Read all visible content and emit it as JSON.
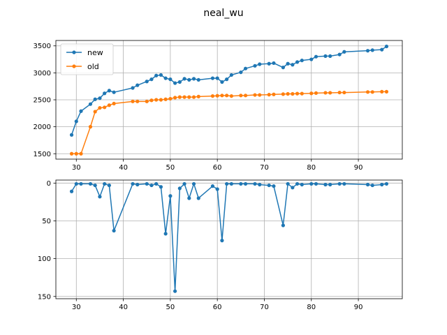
{
  "chart_data": [
    {
      "type": "line",
      "title": "neal_wu",
      "xlabel": "",
      "ylabel": "",
      "xlim": [
        25.65,
        99.35
      ],
      "ylim": [
        1400,
        3600
      ],
      "xticks": [
        30,
        40,
        50,
        60,
        70,
        80,
        90
      ],
      "yticks": [
        1500,
        2000,
        2500,
        3000,
        3500
      ],
      "grid": true,
      "legend": "top-left",
      "series": [
        {
          "name": "new",
          "color": "#1f77b4",
          "x": [
            29,
            30,
            31,
            33,
            34,
            35,
            36,
            37,
            38,
            42,
            43,
            45,
            46,
            47,
            48,
            49,
            50,
            51,
            52,
            53,
            54,
            55,
            56,
            59,
            60,
            61,
            62,
            63,
            65,
            66,
            68,
            69,
            71,
            72,
            74,
            75,
            76,
            77,
            78,
            80,
            81,
            83,
            84,
            86,
            87,
            92,
            93,
            95,
            96
          ],
          "y": [
            1850,
            2100,
            2290,
            2420,
            2510,
            2530,
            2620,
            2670,
            2640,
            2720,
            2770,
            2840,
            2880,
            2950,
            2960,
            2900,
            2880,
            2810,
            2830,
            2890,
            2870,
            2890,
            2870,
            2900,
            2900,
            2830,
            2880,
            2960,
            3010,
            3080,
            3130,
            3160,
            3170,
            3180,
            3100,
            3170,
            3150,
            3200,
            3230,
            3250,
            3300,
            3310,
            3310,
            3340,
            3390,
            3410,
            3420,
            3430,
            3490
          ]
        },
        {
          "name": "old",
          "color": "#ff7f0e",
          "x": [
            29,
            30,
            31,
            33,
            34,
            35,
            36,
            37,
            38,
            42,
            43,
            45,
            46,
            47,
            48,
            49,
            50,
            51,
            52,
            53,
            54,
            55,
            56,
            59,
            60,
            61,
            62,
            63,
            65,
            66,
            68,
            69,
            71,
            72,
            74,
            75,
            76,
            77,
            78,
            80,
            81,
            83,
            84,
            86,
            87,
            92,
            93,
            95,
            96
          ],
          "y": [
            1500,
            1500,
            1500,
            2000,
            2280,
            2350,
            2360,
            2400,
            2430,
            2470,
            2470,
            2470,
            2490,
            2500,
            2500,
            2510,
            2520,
            2540,
            2550,
            2550,
            2550,
            2550,
            2560,
            2570,
            2575,
            2580,
            2580,
            2570,
            2580,
            2580,
            2590,
            2590,
            2595,
            2600,
            2605,
            2610,
            2610,
            2615,
            2615,
            2620,
            2625,
            2630,
            2630,
            2635,
            2635,
            2645,
            2645,
            2650,
            2650
          ]
        }
      ]
    },
    {
      "type": "line",
      "title": "",
      "xlabel": "",
      "ylabel": "",
      "xlim": [
        25.65,
        99.35
      ],
      "ylim": [
        153,
        -4
      ],
      "y_inverted": true,
      "xticks": [
        30,
        40,
        50,
        60,
        70,
        80,
        90
      ],
      "yticks": [
        0,
        50,
        100,
        150
      ],
      "grid": true,
      "series": [
        {
          "color": "#1f77b4",
          "x": [
            29,
            30,
            31,
            33,
            34,
            35,
            36,
            37,
            38,
            42,
            43,
            45,
            46,
            47,
            48,
            49,
            50,
            51,
            52,
            53,
            54,
            55,
            56,
            59,
            60,
            61,
            62,
            63,
            65,
            66,
            68,
            69,
            71,
            72,
            74,
            75,
            76,
            77,
            78,
            80,
            81,
            83,
            84,
            86,
            87,
            92,
            93,
            95,
            96
          ],
          "y": [
            11,
            1,
            1,
            1,
            3,
            18,
            1,
            3,
            63,
            1,
            2,
            1,
            3,
            1,
            5,
            67,
            17,
            143,
            7,
            1,
            20,
            1,
            20,
            4,
            8,
            76,
            1,
            1,
            1,
            1,
            1,
            2,
            3,
            4,
            56,
            1,
            6,
            1,
            2,
            1,
            1,
            2,
            2,
            1,
            1,
            2,
            3,
            2,
            1
          ]
        }
      ]
    }
  ]
}
